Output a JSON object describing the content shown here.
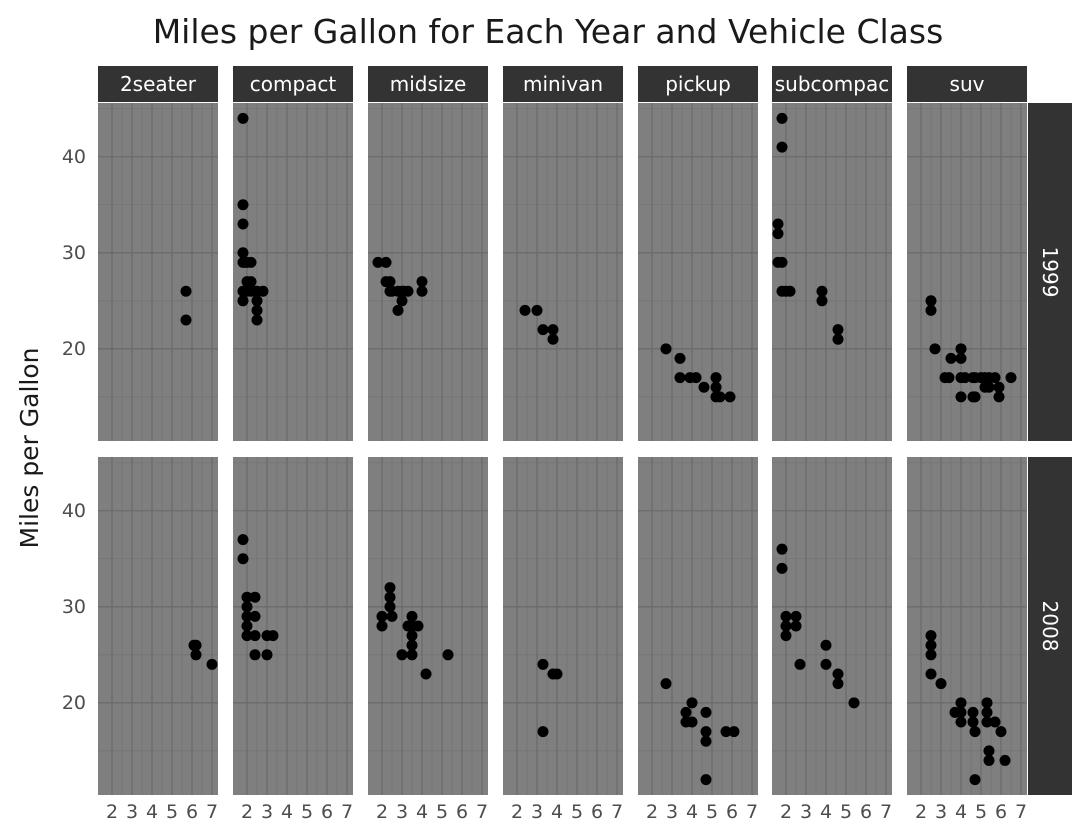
{
  "chart_data": {
    "type": "scatter",
    "title": "Miles per Gallon for Each Year and Vehicle Class",
    "xlabel": "",
    "ylabel": "Miles per Gallon",
    "facet_cols": [
      "2seater",
      "compact",
      "midsize",
      "minivan",
      "pickup",
      "subcompac",
      "suv"
    ],
    "facet_rows": [
      "1999",
      "2008"
    ],
    "xlim": [
      1.3,
      7.3
    ],
    "ylim": [
      10.4,
      45.6
    ],
    "x_ticks": [
      2,
      3,
      4,
      5,
      6,
      7
    ],
    "x_tick_labels": [
      "2",
      "3",
      "4",
      "5",
      "6",
      "7"
    ],
    "y_ticks": [
      20,
      30,
      40
    ],
    "y_tick_labels": [
      "20",
      "30",
      "40"
    ],
    "grid": true,
    "colors": {
      "panel_bg": "#7f7f7f",
      "grid_major": "#6b6b6b",
      "grid_minor": "#747474",
      "strip_bg": "#333333",
      "strip_text": "#ffffff",
      "point": "#000000"
    },
    "panels": [
      {
        "year": "1999",
        "class": "2seater",
        "points": [
          [
            5.7,
            26
          ],
          [
            5.7,
            23
          ]
        ]
      },
      {
        "year": "1999",
        "class": "compact",
        "points": [
          [
            1.8,
            44
          ],
          [
            1.8,
            35
          ],
          [
            1.8,
            33
          ],
          [
            1.8,
            30
          ],
          [
            1.8,
            29
          ],
          [
            1.8,
            26
          ],
          [
            1.8,
            25
          ],
          [
            1.9,
            29
          ],
          [
            2.0,
            29
          ],
          [
            2.0,
            27
          ],
          [
            2.2,
            29
          ],
          [
            2.2,
            27
          ],
          [
            2.0,
            26
          ],
          [
            2.4,
            26
          ],
          [
            2.5,
            26
          ],
          [
            2.5,
            25
          ],
          [
            2.5,
            24
          ],
          [
            2.5,
            23
          ],
          [
            2.8,
            26
          ],
          [
            2.2,
            26
          ]
        ]
      },
      {
        "year": "1999",
        "class": "midsize",
        "points": [
          [
            1.8,
            29
          ],
          [
            2.2,
            29
          ],
          [
            2.2,
            27
          ],
          [
            2.4,
            27
          ],
          [
            2.4,
            26
          ],
          [
            2.5,
            26
          ],
          [
            2.8,
            26
          ],
          [
            2.8,
            24
          ],
          [
            3.0,
            26
          ],
          [
            3.0,
            25
          ],
          [
            3.1,
            26
          ],
          [
            3.3,
            26
          ],
          [
            4.0,
            27
          ],
          [
            4.0,
            26
          ]
        ]
      },
      {
        "year": "1999",
        "class": "minivan",
        "points": [
          [
            2.4,
            24
          ],
          [
            3.0,
            24
          ],
          [
            3.3,
            22
          ],
          [
            3.8,
            22
          ],
          [
            3.8,
            21
          ]
        ]
      },
      {
        "year": "1999",
        "class": "pickup",
        "points": [
          [
            2.7,
            20
          ],
          [
            3.4,
            19
          ],
          [
            3.4,
            17
          ],
          [
            3.9,
            17
          ],
          [
            4.2,
            17
          ],
          [
            4.6,
            16
          ],
          [
            5.2,
            17
          ],
          [
            5.2,
            16
          ],
          [
            5.2,
            15
          ],
          [
            5.4,
            15
          ],
          [
            5.9,
            15
          ]
        ]
      },
      {
        "year": "1999",
        "class": "subcompac",
        "points": [
          [
            1.6,
            33
          ],
          [
            1.6,
            32
          ],
          [
            1.6,
            29
          ],
          [
            1.8,
            44
          ],
          [
            1.8,
            41
          ],
          [
            1.8,
            29
          ],
          [
            1.8,
            26
          ],
          [
            2.0,
            26
          ],
          [
            2.2,
            26
          ],
          [
            3.8,
            26
          ],
          [
            3.8,
            25
          ],
          [
            4.6,
            22
          ],
          [
            4.6,
            21
          ]
        ]
      },
      {
        "year": "1999",
        "class": "suv",
        "points": [
          [
            2.5,
            25
          ],
          [
            2.5,
            24
          ],
          [
            2.7,
            20
          ],
          [
            3.2,
            17
          ],
          [
            3.4,
            17
          ],
          [
            3.5,
            19
          ],
          [
            4.0,
            20
          ],
          [
            4.0,
            19
          ],
          [
            4.0,
            17
          ],
          [
            4.0,
            15
          ],
          [
            4.6,
            17
          ],
          [
            4.6,
            15
          ],
          [
            4.7,
            17
          ],
          [
            4.7,
            15
          ],
          [
            5.0,
            17
          ],
          [
            5.2,
            17
          ],
          [
            5.4,
            17
          ],
          [
            5.4,
            16
          ],
          [
            5.7,
            17
          ],
          [
            5.9,
            16
          ],
          [
            5.9,
            15
          ],
          [
            6.5,
            17
          ],
          [
            5.2,
            16
          ],
          [
            4.2,
            17
          ]
        ]
      },
      {
        "year": "2008",
        "class": "2seater",
        "points": [
          [
            6.1,
            26
          ],
          [
            6.2,
            26
          ],
          [
            6.2,
            25
          ],
          [
            7.0,
            24
          ]
        ]
      },
      {
        "year": "2008",
        "class": "compact",
        "points": [
          [
            1.8,
            37
          ],
          [
            1.8,
            35
          ],
          [
            2.0,
            31
          ],
          [
            2.0,
            30
          ],
          [
            2.0,
            29
          ],
          [
            2.0,
            28
          ],
          [
            2.0,
            27
          ],
          [
            2.4,
            31
          ],
          [
            2.4,
            29
          ],
          [
            2.4,
            27
          ],
          [
            2.4,
            25
          ],
          [
            3.0,
            27
          ],
          [
            3.0,
            25
          ],
          [
            3.3,
            27
          ]
        ]
      },
      {
        "year": "2008",
        "class": "midsize",
        "points": [
          [
            2.0,
            29
          ],
          [
            2.0,
            28
          ],
          [
            2.4,
            32
          ],
          [
            2.4,
            31
          ],
          [
            2.4,
            30
          ],
          [
            2.5,
            29
          ],
          [
            3.0,
            25
          ],
          [
            3.3,
            28
          ],
          [
            3.5,
            29
          ],
          [
            3.5,
            28
          ],
          [
            3.5,
            27
          ],
          [
            3.5,
            26
          ],
          [
            3.5,
            25
          ],
          [
            3.8,
            28
          ],
          [
            4.2,
            23
          ],
          [
            5.3,
            25
          ]
        ]
      },
      {
        "year": "2008",
        "class": "minivan",
        "points": [
          [
            3.3,
            24
          ],
          [
            3.3,
            17
          ],
          [
            3.8,
            23
          ],
          [
            4.0,
            23
          ]
        ]
      },
      {
        "year": "2008",
        "class": "pickup",
        "points": [
          [
            2.7,
            22
          ],
          [
            3.7,
            19
          ],
          [
            3.7,
            18
          ],
          [
            4.0,
            18
          ],
          [
            4.0,
            20
          ],
          [
            4.7,
            19
          ],
          [
            4.7,
            17
          ],
          [
            4.7,
            16
          ],
          [
            4.7,
            12
          ],
          [
            5.7,
            17
          ],
          [
            6.1,
            17
          ]
        ]
      },
      {
        "year": "2008",
        "class": "subcompac",
        "points": [
          [
            1.8,
            36
          ],
          [
            1.8,
            34
          ],
          [
            2.0,
            29
          ],
          [
            2.0,
            28
          ],
          [
            2.0,
            27
          ],
          [
            2.5,
            29
          ],
          [
            2.5,
            28
          ],
          [
            2.7,
            24
          ],
          [
            4.0,
            26
          ],
          [
            4.0,
            24
          ],
          [
            4.6,
            23
          ],
          [
            4.6,
            22
          ],
          [
            5.4,
            20
          ]
        ]
      },
      {
        "year": "2008",
        "class": "suv",
        "points": [
          [
            2.5,
            27
          ],
          [
            2.5,
            26
          ],
          [
            2.5,
            25
          ],
          [
            2.5,
            23
          ],
          [
            3.0,
            22
          ],
          [
            3.7,
            19
          ],
          [
            4.0,
            20
          ],
          [
            4.0,
            19
          ],
          [
            4.0,
            18
          ],
          [
            4.6,
            18
          ],
          [
            4.6,
            19
          ],
          [
            4.7,
            17
          ],
          [
            4.7,
            12
          ],
          [
            5.3,
            20
          ],
          [
            5.3,
            19
          ],
          [
            5.3,
            18
          ],
          [
            5.4,
            15
          ],
          [
            5.4,
            14
          ],
          [
            5.7,
            18
          ],
          [
            6.0,
            17
          ],
          [
            6.2,
            14
          ]
        ]
      }
    ]
  }
}
